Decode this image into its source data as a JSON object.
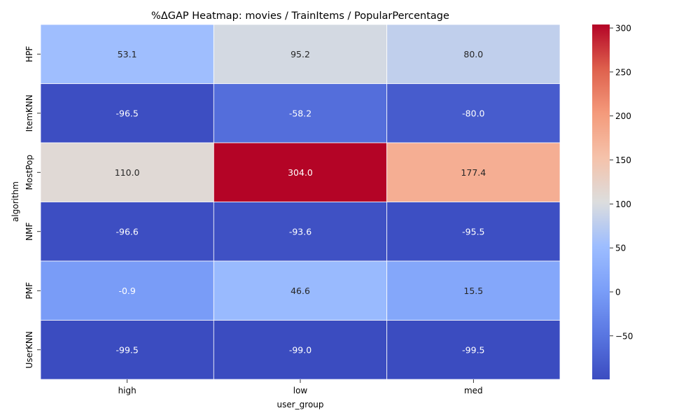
{
  "chart_data": {
    "type": "heatmap",
    "title": "%ΔGAP Heatmap: movies / TrainItems / PopularPercentage",
    "xlabel": "user_group",
    "ylabel": "algorithm",
    "x_categories": [
      "high",
      "low",
      "med"
    ],
    "y_categories": [
      "HPF",
      "ItemKNN",
      "MostPop",
      "NMF",
      "PMF",
      "UserKNN"
    ],
    "values": [
      [
        53.1,
        95.2,
        80.0
      ],
      [
        -96.5,
        -58.2,
        -80.0
      ],
      [
        110.0,
        304.0,
        177.4
      ],
      [
        -96.6,
        -93.6,
        -95.5
      ],
      [
        -0.9,
        46.6,
        15.5
      ],
      [
        -99.5,
        -99.0,
        -99.5
      ]
    ],
    "value_format": "0.1f",
    "colormap": "coolwarm",
    "color_range": [
      -99.5,
      304.0
    ],
    "colorbar_ticks": [
      300,
      250,
      200,
      150,
      100,
      50,
      0,
      -50
    ],
    "grid": false,
    "legend": "colorbar-right"
  }
}
